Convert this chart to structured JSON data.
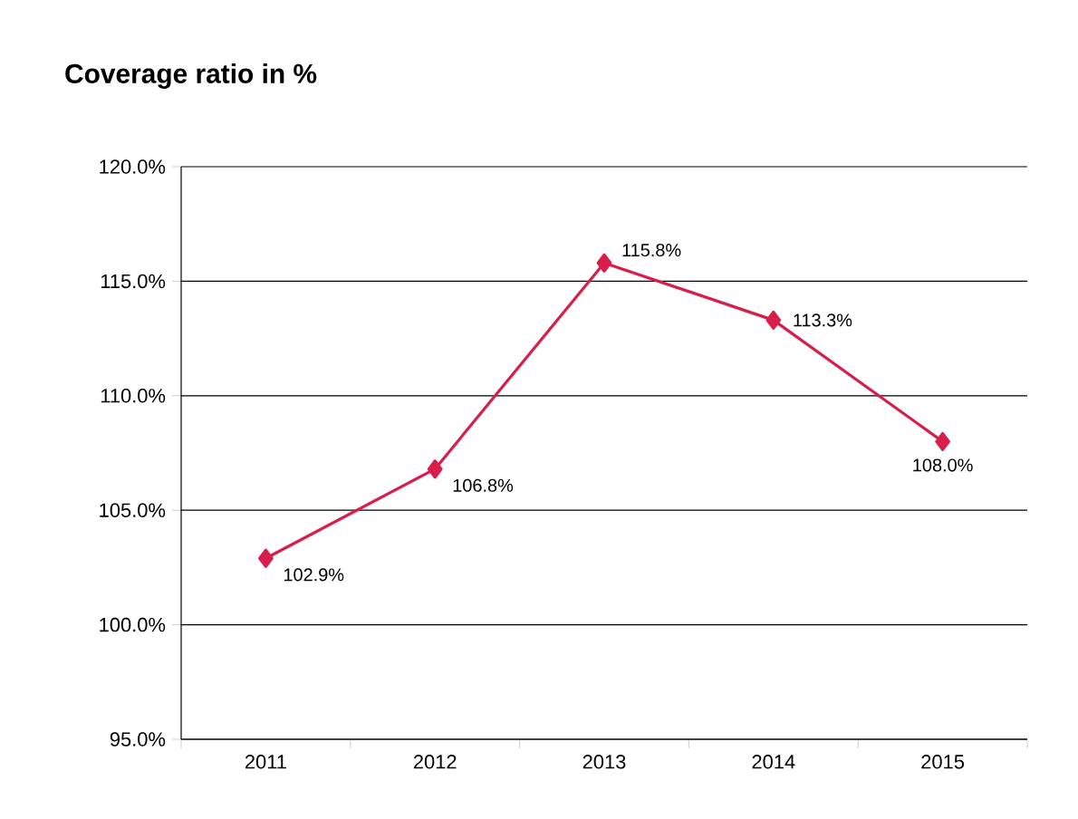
{
  "chart_data": {
    "type": "line",
    "title": "Coverage ratio in %",
    "categories": [
      "2011",
      "2012",
      "2013",
      "2014",
      "2015"
    ],
    "values": [
      102.9,
      106.8,
      115.8,
      113.3,
      108.0
    ],
    "value_labels": [
      "102.9%",
      "106.8%",
      "115.8%",
      "113.3%",
      "108.0%"
    ],
    "color": "#d81e4a",
    "marker": "diamond",
    "line_style": "solid",
    "grid": "y",
    "ylim": [
      95,
      120
    ],
    "yticks": [
      {
        "value": 95,
        "label": "95.0%"
      },
      {
        "value": 100,
        "label": "100.0%"
      },
      {
        "value": 105,
        "label": "105.0%"
      },
      {
        "value": 110,
        "label": "110.0%"
      },
      {
        "value": 115,
        "label": "115.0%"
      },
      {
        "value": 120,
        "label": "120.0%"
      }
    ]
  }
}
